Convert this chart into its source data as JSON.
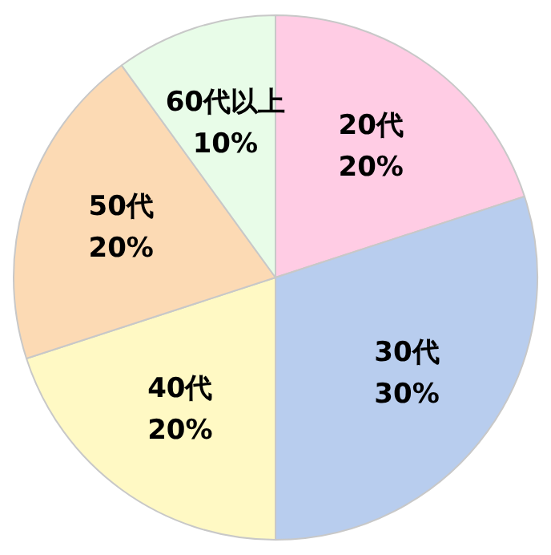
{
  "chart_data": {
    "type": "pie",
    "categories": [
      "20代",
      "30代",
      "40代",
      "50代",
      "60代以上"
    ],
    "values": [
      20,
      30,
      20,
      20,
      10
    ],
    "value_labels": [
      "20%",
      "30%",
      "20%",
      "20%",
      "10%"
    ],
    "colors": [
      "#ffcce4",
      "#b8cdee",
      "#fff9c4",
      "#fcdab4",
      "#e8fce8"
    ],
    "legend": false
  }
}
